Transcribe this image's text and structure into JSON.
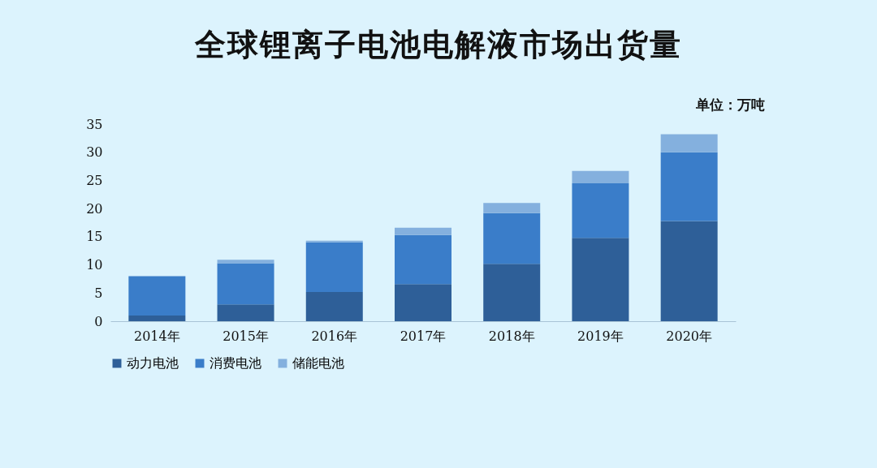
{
  "chart_data": {
    "type": "bar",
    "title": "全球锂离子电池电解液市场出货量",
    "annotations": [
      "单位：万吨"
    ],
    "categories": [
      "2014年",
      "2015年",
      "2016年",
      "2017年",
      "2018年",
      "2019年",
      "2020年"
    ],
    "series": [
      {
        "name": "动力电池",
        "color": "#2e5f98",
        "values": [
          1.0,
          3.0,
          5.2,
          6.6,
          10.2,
          14.8,
          17.8
        ]
      },
      {
        "name": "消费电池",
        "color": "#3a7dc9",
        "values": [
          7.0,
          7.3,
          8.8,
          8.7,
          9.0,
          9.7,
          12.2
        ]
      },
      {
        "name": "储能电池",
        "color": "#84b0de",
        "values": [
          0,
          0.6,
          0.3,
          1.3,
          1.8,
          2.2,
          3.2
        ]
      }
    ],
    "stacked": true,
    "ylim": [
      0,
      35
    ],
    "yticks": [
      0,
      5,
      10,
      15,
      20,
      25,
      30,
      35
    ],
    "grid": false,
    "legend": "bottom"
  }
}
